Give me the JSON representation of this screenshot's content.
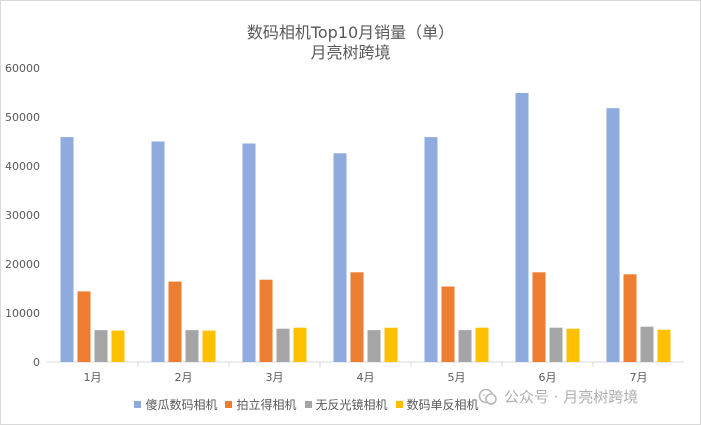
{
  "chart_data": {
    "type": "bar",
    "title": "数码相机Top10月销量（单）",
    "subtitle": "月亮树跨境",
    "categories": [
      "1月",
      "2月",
      "3月",
      "4月",
      "5月",
      "6月",
      "7月"
    ],
    "ylim": [
      0,
      60000
    ],
    "yticks": [
      0,
      10000,
      20000,
      30000,
      40000,
      50000,
      60000
    ],
    "grid": false,
    "legend_position": "bottom",
    "series": [
      {
        "name": "傻瓜数码相机",
        "color": "#8faadc",
        "values": [
          45900,
          45000,
          44600,
          42600,
          45900,
          54900,
          51800
        ]
      },
      {
        "name": "拍立得相机",
        "color": "#ed7d31",
        "values": [
          14400,
          16400,
          16800,
          18300,
          15400,
          18300,
          17900
        ]
      },
      {
        "name": "无反光镜相机",
        "color": "#a5a5a5",
        "values": [
          6500,
          6500,
          6800,
          6500,
          6500,
          7000,
          7200
        ]
      },
      {
        "name": "数码单反相机",
        "color": "#ffc000",
        "values": [
          6400,
          6400,
          7000,
          7000,
          7000,
          6800,
          6600
        ]
      }
    ]
  },
  "watermark": {
    "text": "公众号 · 月亮树跨境",
    "icon": "wechat-icon"
  }
}
